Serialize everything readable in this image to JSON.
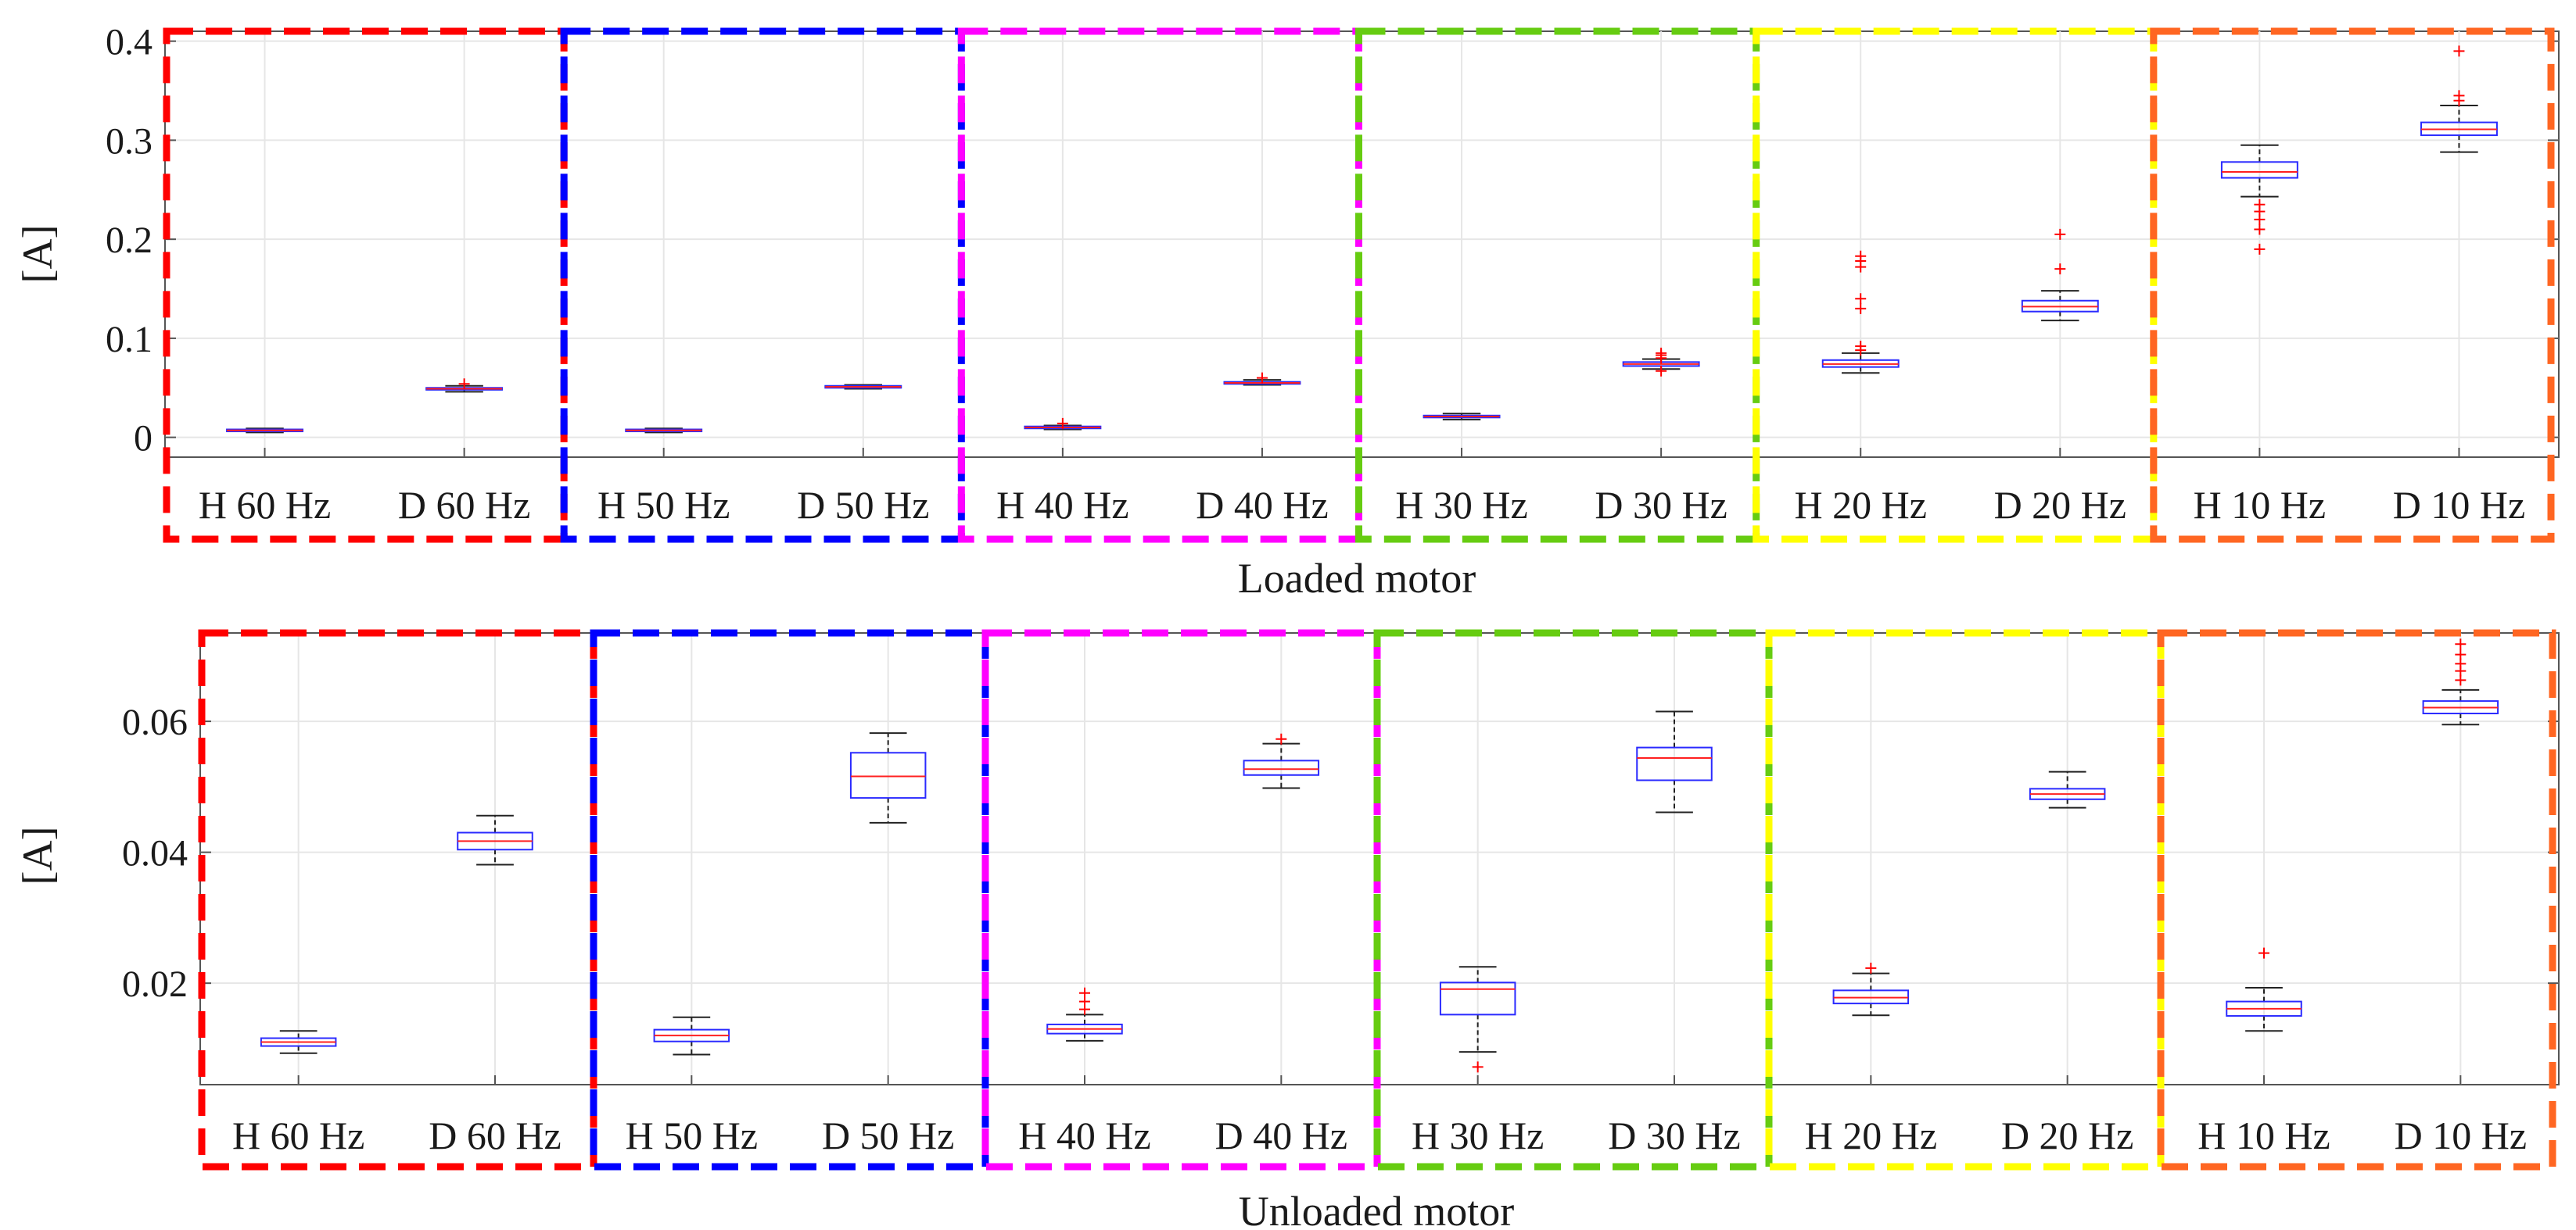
{
  "chart_data": [
    {
      "type": "boxplot",
      "xlabel": "Loaded motor",
      "ylabel": "[A]",
      "ylim": [
        -0.02,
        0.41
      ],
      "yticks": [
        0,
        0.1,
        0.2,
        0.3,
        0.4
      ],
      "ytick_labels": [
        "0",
        "0.1",
        "0.2",
        "0.3",
        "0.4"
      ],
      "grid": true,
      "categories": [
        "H 60 Hz",
        "D 60 Hz",
        "H 50 Hz",
        "D 50 Hz",
        "H 40 Hz",
        "D 40 Hz",
        "H 30 Hz",
        "D 30 Hz",
        "H 20 Hz",
        "D 20 Hz",
        "H 10 Hz",
        "D 10 Hz"
      ],
      "groups": [
        {
          "frequency": "60 Hz",
          "color": "#ff0000",
          "members": [
            "H 60 Hz",
            "D 60 Hz"
          ]
        },
        {
          "frequency": "50 Hz",
          "color": "#0000ff",
          "members": [
            "H 50 Hz",
            "D 50 Hz"
          ]
        },
        {
          "frequency": "40 Hz",
          "color": "#ff00ff",
          "members": [
            "H 40 Hz",
            "D 40 Hz"
          ]
        },
        {
          "frequency": "30 Hz",
          "color": "#66cc11",
          "members": [
            "H 30 Hz",
            "D 30 Hz"
          ]
        },
        {
          "frequency": "20 Hz",
          "color": "#ffff00",
          "members": [
            "H 20 Hz",
            "D 20 Hz"
          ]
        },
        {
          "frequency": "10 Hz",
          "color": "#ff6622",
          "members": [
            "H 10 Hz",
            "D 10 Hz"
          ]
        }
      ],
      "boxes": [
        {
          "label": "H 60 Hz",
          "whisker_low": 0.005,
          "q1": 0.006,
          "median": 0.007,
          "q3": 0.008,
          "whisker_high": 0.009,
          "outliers": []
        },
        {
          "label": "D 60 Hz",
          "whisker_low": 0.046,
          "q1": 0.048,
          "median": 0.049,
          "q3": 0.05,
          "whisker_high": 0.052,
          "outliers": [
            0.054
          ]
        },
        {
          "label": "H 50 Hz",
          "whisker_low": 0.005,
          "q1": 0.006,
          "median": 0.007,
          "q3": 0.008,
          "whisker_high": 0.009,
          "outliers": []
        },
        {
          "label": "D 50 Hz",
          "whisker_low": 0.049,
          "q1": 0.05,
          "median": 0.051,
          "q3": 0.052,
          "whisker_high": 0.053,
          "outliers": []
        },
        {
          "label": "H 40 Hz",
          "whisker_low": 0.008,
          "q1": 0.009,
          "median": 0.01,
          "q3": 0.011,
          "whisker_high": 0.012,
          "outliers": [
            0.014
          ]
        },
        {
          "label": "D 40 Hz",
          "whisker_low": 0.053,
          "q1": 0.054,
          "median": 0.055,
          "q3": 0.056,
          "whisker_high": 0.058,
          "outliers": [
            0.06
          ]
        },
        {
          "label": "H 30 Hz",
          "whisker_low": 0.018,
          "q1": 0.02,
          "median": 0.021,
          "q3": 0.022,
          "whisker_high": 0.024,
          "outliers": []
        },
        {
          "label": "D 30 Hz",
          "whisker_low": 0.069,
          "q1": 0.072,
          "median": 0.074,
          "q3": 0.076,
          "whisker_high": 0.079,
          "outliers": [
            0.067,
            0.08,
            0.083,
            0.085
          ]
        },
        {
          "label": "H 20 Hz",
          "whisker_low": 0.065,
          "q1": 0.071,
          "median": 0.074,
          "q3": 0.078,
          "whisker_high": 0.085,
          "outliers": [
            0.088,
            0.092,
            0.13,
            0.14,
            0.172,
            0.178,
            0.183
          ]
        },
        {
          "label": "D 20 Hz",
          "whisker_low": 0.118,
          "q1": 0.127,
          "median": 0.132,
          "q3": 0.138,
          "whisker_high": 0.148,
          "outliers": [
            0.17,
            0.205
          ]
        },
        {
          "label": "H 10 Hz",
          "whisker_low": 0.243,
          "q1": 0.262,
          "median": 0.268,
          "q3": 0.278,
          "whisker_high": 0.295,
          "outliers": [
            0.19,
            0.21,
            0.22,
            0.228,
            0.235
          ]
        },
        {
          "label": "D 10 Hz",
          "whisker_low": 0.288,
          "q1": 0.305,
          "median": 0.311,
          "q3": 0.318,
          "whisker_high": 0.335,
          "outliers": [
            0.34,
            0.345,
            0.39
          ]
        }
      ]
    },
    {
      "type": "boxplot",
      "xlabel": "Unloaded motor",
      "ylabel": "[A]",
      "ylim": [
        0.0045,
        0.0735
      ],
      "yticks": [
        0.02,
        0.04,
        0.06
      ],
      "ytick_labels": [
        "0.02",
        "0.04",
        "0.06"
      ],
      "grid": true,
      "categories": [
        "H 60 Hz",
        "D 60 Hz",
        "H 50 Hz",
        "D 50 Hz",
        "H 40 Hz",
        "D 40 Hz",
        "H 30 Hz",
        "D 30 Hz",
        "H 20 Hz",
        "D 20 Hz",
        "H 10 Hz",
        "D 10 Hz"
      ],
      "groups": [
        {
          "frequency": "60 Hz",
          "color": "#ff0000",
          "members": [
            "H 60 Hz",
            "D 60 Hz"
          ]
        },
        {
          "frequency": "50 Hz",
          "color": "#0000ff",
          "members": [
            "H 50 Hz",
            "D 50 Hz"
          ]
        },
        {
          "frequency": "40 Hz",
          "color": "#ff00ff",
          "members": [
            "H 40 Hz",
            "D 40 Hz"
          ]
        },
        {
          "frequency": "30 Hz",
          "color": "#66cc11",
          "members": [
            "H 30 Hz",
            "D 30 Hz"
          ]
        },
        {
          "frequency": "20 Hz",
          "color": "#ffff00",
          "members": [
            "H 20 Hz",
            "D 20 Hz"
          ]
        },
        {
          "frequency": "10 Hz",
          "color": "#ff6622",
          "members": [
            "H 10 Hz",
            "D 10 Hz"
          ]
        }
      ],
      "boxes": [
        {
          "label": "H 60 Hz",
          "whisker_low": 0.0093,
          "q1": 0.0104,
          "median": 0.011,
          "q3": 0.0116,
          "whisker_high": 0.0127,
          "outliers": []
        },
        {
          "label": "D 60 Hz",
          "whisker_low": 0.0381,
          "q1": 0.0404,
          "median": 0.0417,
          "q3": 0.043,
          "whisker_high": 0.0456,
          "outliers": []
        },
        {
          "label": "H 50 Hz",
          "whisker_low": 0.0091,
          "q1": 0.0111,
          "median": 0.012,
          "q3": 0.0129,
          "whisker_high": 0.0148,
          "outliers": []
        },
        {
          "label": "D 50 Hz",
          "whisker_low": 0.0445,
          "q1": 0.0483,
          "median": 0.0516,
          "q3": 0.0552,
          "whisker_high": 0.0582,
          "outliers": []
        },
        {
          "label": "H 40 Hz",
          "whisker_low": 0.0112,
          "q1": 0.0123,
          "median": 0.013,
          "q3": 0.0137,
          "whisker_high": 0.0152,
          "outliers": [
            0.016,
            0.0172,
            0.0185
          ]
        },
        {
          "label": "D 40 Hz",
          "whisker_low": 0.0498,
          "q1": 0.0518,
          "median": 0.0527,
          "q3": 0.054,
          "whisker_high": 0.0566,
          "outliers": [
            0.0573
          ]
        },
        {
          "label": "H 30 Hz",
          "whisker_low": 0.0095,
          "q1": 0.0152,
          "median": 0.0191,
          "q3": 0.0201,
          "whisker_high": 0.0225,
          "outliers": [
            0.0072
          ]
        },
        {
          "label": "D 30 Hz",
          "whisker_low": 0.0461,
          "q1": 0.051,
          "median": 0.0544,
          "q3": 0.056,
          "whisker_high": 0.0615,
          "outliers": []
        },
        {
          "label": "H 20 Hz",
          "whisker_low": 0.0151,
          "q1": 0.0169,
          "median": 0.0178,
          "q3": 0.0189,
          "whisker_high": 0.0215,
          "outliers": [
            0.0223
          ]
        },
        {
          "label": "D 20 Hz",
          "whisker_low": 0.0468,
          "q1": 0.0481,
          "median": 0.0489,
          "q3": 0.0497,
          "whisker_high": 0.0523,
          "outliers": []
        },
        {
          "label": "H 10 Hz",
          "whisker_low": 0.0127,
          "q1": 0.015,
          "median": 0.0161,
          "q3": 0.0172,
          "whisker_high": 0.0193,
          "outliers": [
            0.0246
          ]
        },
        {
          "label": "D 10 Hz",
          "whisker_low": 0.0595,
          "q1": 0.0612,
          "median": 0.0621,
          "q3": 0.0631,
          "whisker_high": 0.0648,
          "outliers": [
            0.0663,
            0.0677,
            0.0688,
            0.0702,
            0.0718
          ]
        }
      ]
    }
  ],
  "style": {
    "box_color": "#2a2aff",
    "median_color": "#ff2020",
    "whisker_color": "#222222",
    "outlier_color": "#ff0000",
    "grid_color": "#e6e6e6",
    "axis_color": "#555555"
  }
}
